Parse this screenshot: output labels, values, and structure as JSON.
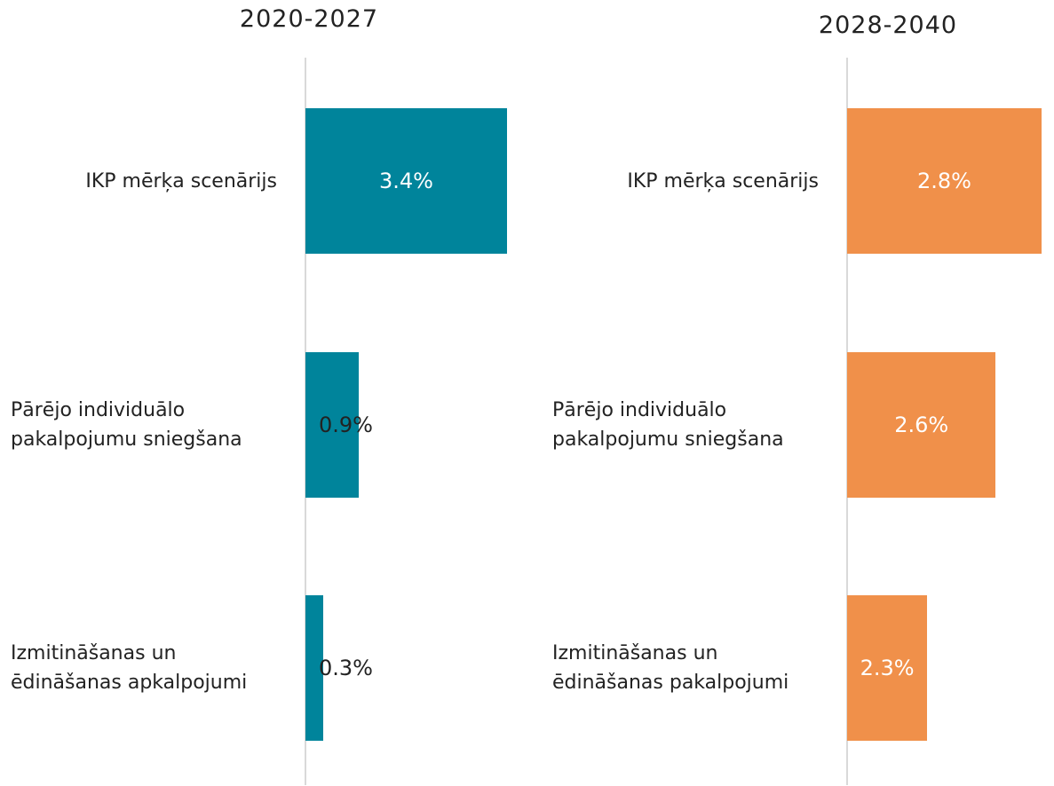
{
  "chart_data": [
    {
      "type": "hbar",
      "title": "2020-2027",
      "categories": [
        "IKP mērķa scenārijs",
        "Pārējo individuālo pakalpojumu sniegšana",
        "Izmitināšanas un ēdināšanas apkalpojumi"
      ],
      "values": [
        3.4,
        0.9,
        0.3
      ],
      "value_labels": [
        "3.4%",
        "0.9%",
        "0.3%"
      ],
      "color": "#00849b",
      "xlim": [
        0,
        3.4
      ]
    },
    {
      "type": "hbar",
      "title": "2028-2040",
      "categories": [
        "IKP mērķa scenārijs",
        "Pārējo individuālo pakalpojumu sniegšana",
        "Izmitināšanas un ēdināšanas pakalpojumi"
      ],
      "values": [
        2.8,
        2.6,
        2.3
      ],
      "value_labels": [
        "2.8%",
        "2.6%",
        "2.3%"
      ],
      "color": "#f0904a",
      "xlim": [
        1.95,
        2.8
      ]
    }
  ]
}
